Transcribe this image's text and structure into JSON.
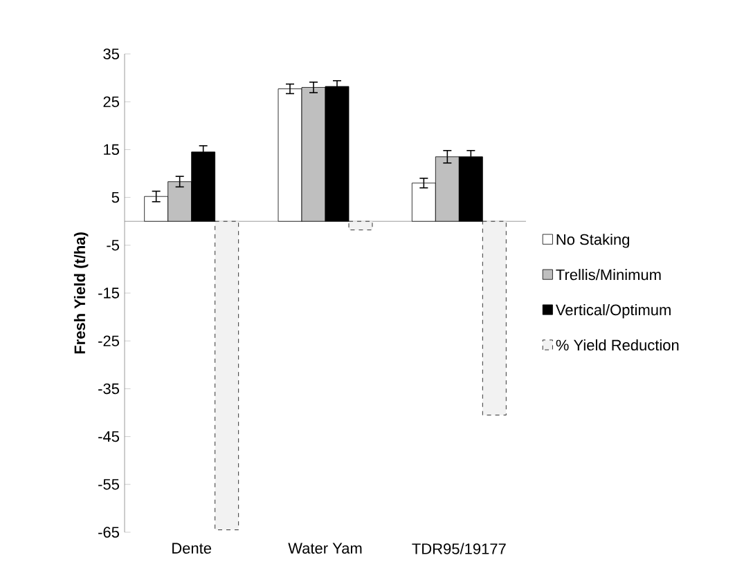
{
  "chart_data": {
    "type": "bar",
    "ylabel": "Fresh Yield (t/ha)",
    "categories": [
      "Dente",
      "Water Yam",
      "TDR95/19177"
    ],
    "series": [
      {
        "name": "No Staking",
        "color": "#ffffff",
        "values": [
          5.2,
          27.7,
          8.0
        ],
        "errors": [
          1.1,
          1.0,
          1.0
        ]
      },
      {
        "name": "Trellis/Minimum",
        "color": "#bfbfbf",
        "values": [
          8.3,
          28.0,
          13.5
        ],
        "errors": [
          1.1,
          1.1,
          1.3
        ]
      },
      {
        "name": "Vertical/Optimum",
        "color": "#000000",
        "values": [
          14.5,
          28.2,
          13.5
        ],
        "errors": [
          1.3,
          1.2,
          1.3
        ]
      },
      {
        "name": "% Yield Reduction",
        "color": "#f2f2f2",
        "values": [
          -64.5,
          -1.8,
          -40.5
        ],
        "line_style": "dashed"
      }
    ],
    "ylim": [
      -65,
      35
    ],
    "yticks": [
      -65,
      -55,
      -45,
      -35,
      -25,
      -15,
      -5,
      5,
      15,
      25,
      35
    ],
    "grid": false,
    "legend": "right"
  }
}
